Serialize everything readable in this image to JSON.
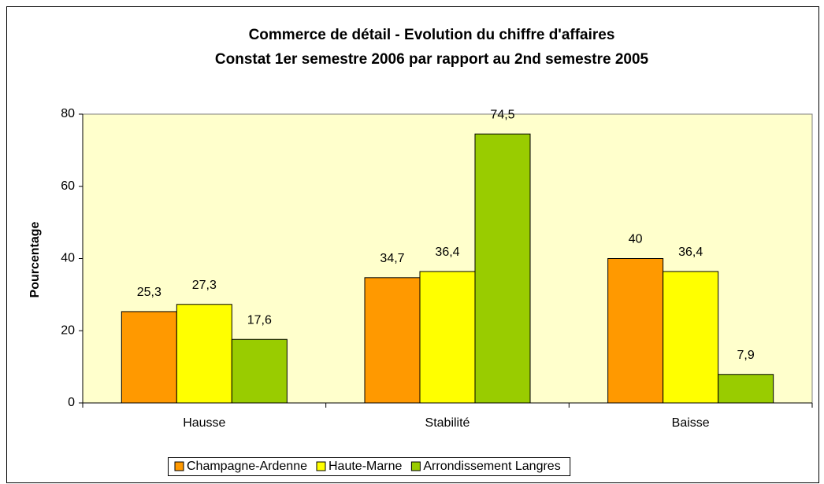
{
  "chart_data": {
    "type": "bar",
    "title": "Commerce de détail - Evolution du chiffre d'affaires",
    "subtitle": "Constat 1er semestre 2006 par rapport au 2nd semestre 2005",
    "y_label": "Pourcentage",
    "categories": [
      "Hausse",
      "Stabilité",
      "Baisse"
    ],
    "series": [
      {
        "name": "Champagne-Ardenne",
        "color": "#FF9900",
        "values": [
          25.3,
          34.7,
          40
        ],
        "value_labels": [
          "25,3",
          "34,7",
          "40"
        ]
      },
      {
        "name": "Haute-Marne",
        "color": "#FFFF00",
        "values": [
          27.3,
          36.4,
          36.4
        ],
        "value_labels": [
          "27,3",
          "36,4",
          "36,4"
        ]
      },
      {
        "name": "Arrondissement Langres",
        "color": "#99CC00",
        "values": [
          17.6,
          74.5,
          7.9
        ],
        "value_labels": [
          "17,6",
          "74,5",
          "7,9"
        ]
      }
    ],
    "ylim": [
      0,
      80
    ],
    "yticks": [
      0,
      20,
      40,
      60,
      80
    ],
    "grid": false,
    "legend": "bottom",
    "plot_background": "#FFFFCC"
  }
}
